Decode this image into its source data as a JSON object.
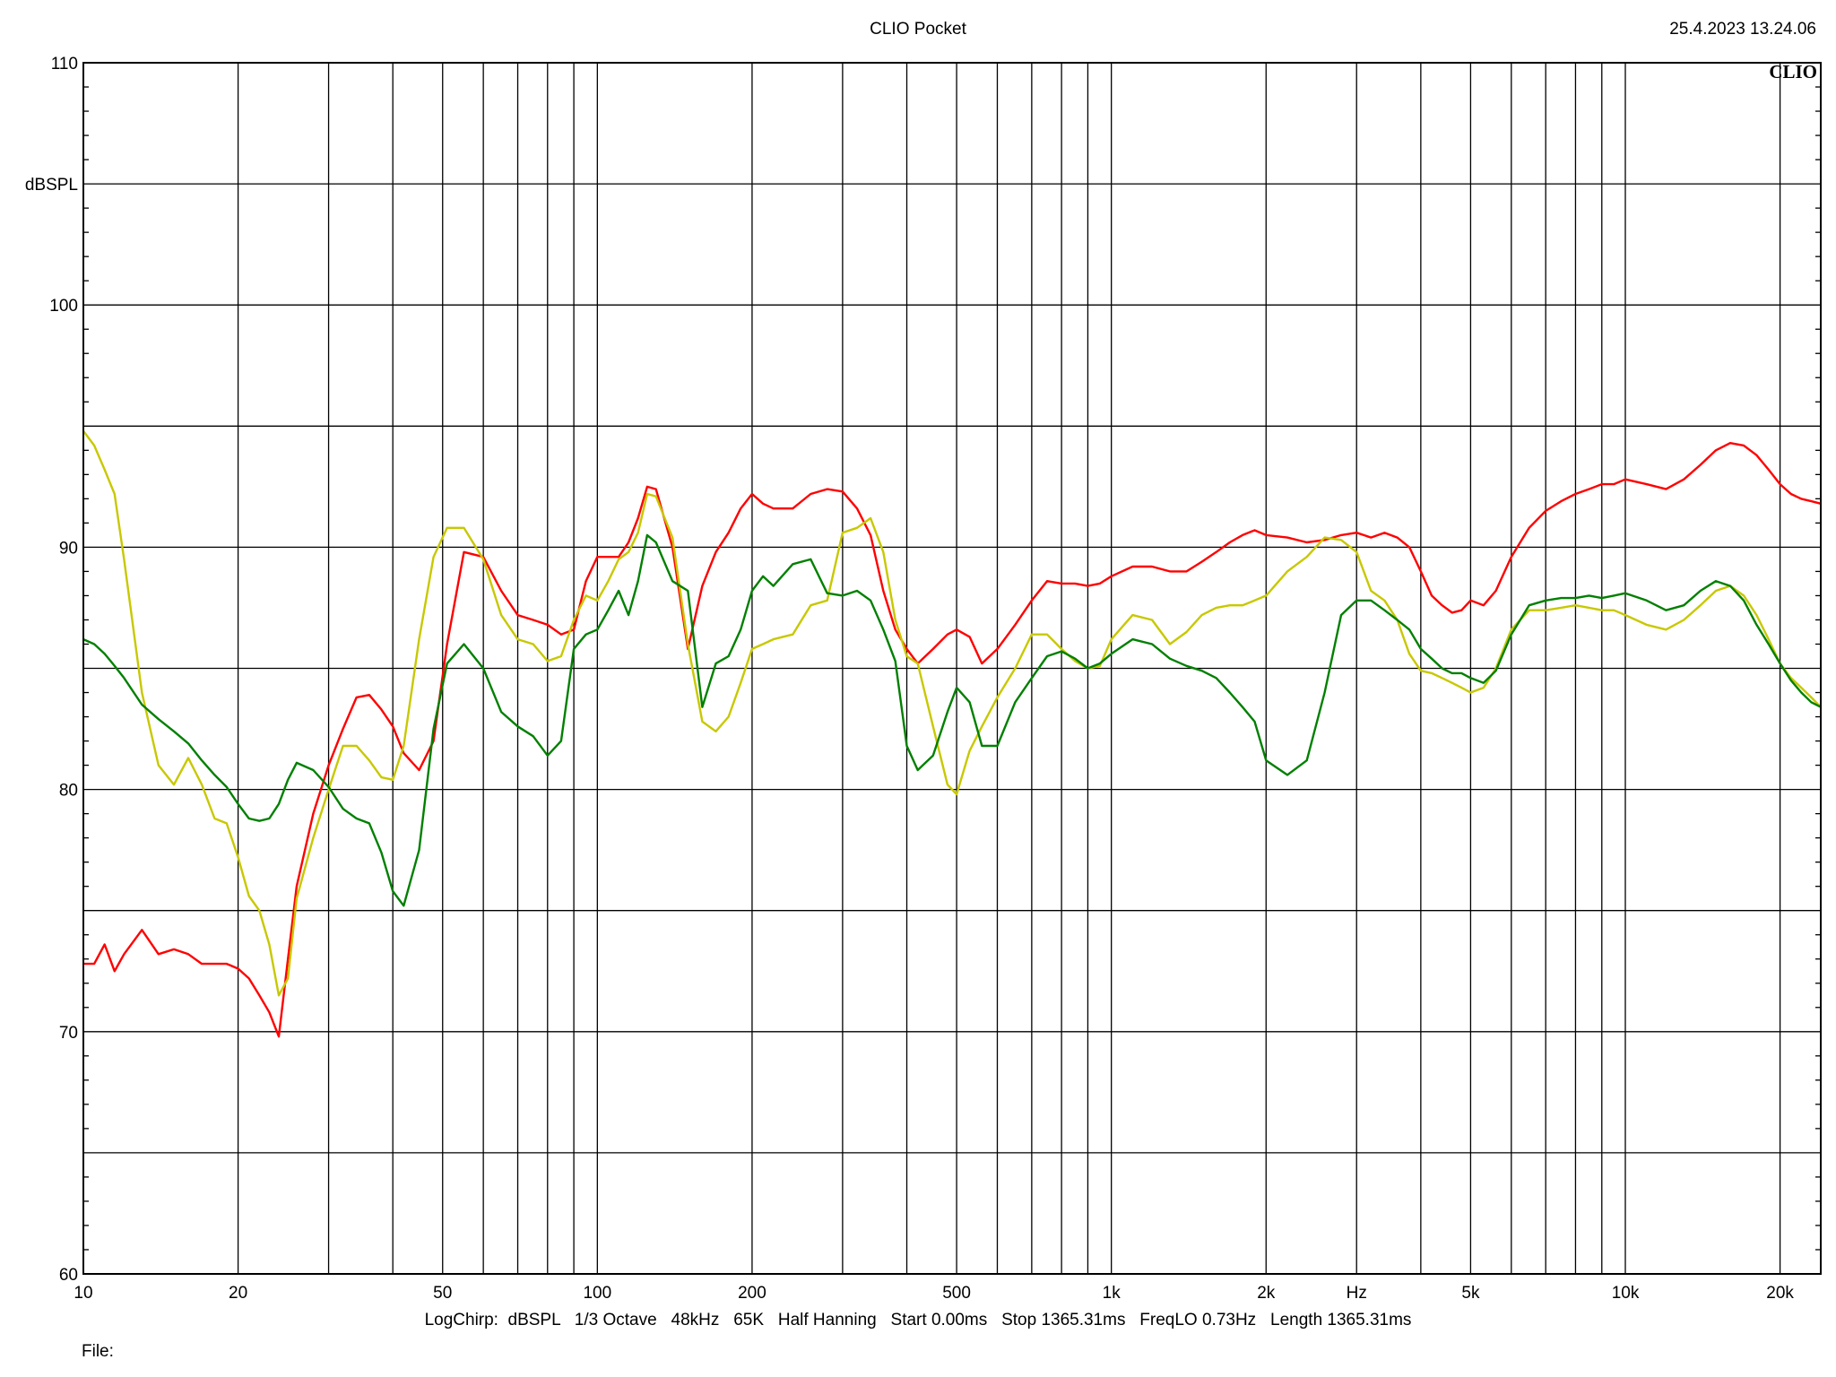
{
  "header": {
    "title": "CLIO Pocket",
    "timestamp": "25.4.2023 13.24.06",
    "logo": "CLIO"
  },
  "footer": {
    "settings": "LogChirp:  dBSPL   1/3 Octave   48kHz   65K   Half Hanning   Start 0.00ms   Stop 1365.31ms   FreqLO 0.73Hz   Length 1365.31ms",
    "file_label": "File:"
  },
  "chart_data": {
    "type": "line",
    "title": "",
    "xlabel": "Hz",
    "ylabel": "dBSPL",
    "x_scale": "log",
    "xlim": [
      10,
      24000
    ],
    "ylim": [
      60,
      110
    ],
    "grid": true,
    "x_tick_labels": [
      {
        "value": 10,
        "label": "10"
      },
      {
        "value": 20,
        "label": "20"
      },
      {
        "value": 50,
        "label": "50"
      },
      {
        "value": 100,
        "label": "100"
      },
      {
        "value": 200,
        "label": "200"
      },
      {
        "value": 500,
        "label": "500"
      },
      {
        "value": 1000,
        "label": "1k"
      },
      {
        "value": 2000,
        "label": "2k"
      },
      {
        "value": 5000,
        "label": "5k"
      },
      {
        "value": 10000,
        "label": "10k"
      },
      {
        "value": 20000,
        "label": "20k"
      }
    ],
    "y_tick_labels": [
      {
        "value": 60,
        "label": "60"
      },
      {
        "value": 70,
        "label": "70"
      },
      {
        "value": 80,
        "label": "80"
      },
      {
        "value": 90,
        "label": "90"
      },
      {
        "value": 100,
        "label": "100"
      },
      {
        "value": 110,
        "label": "110"
      }
    ],
    "series": [
      {
        "color": "#ff0000",
        "x": [
          10,
          10.5,
          11,
          11.5,
          12,
          13,
          14,
          15,
          16,
          17,
          18,
          19,
          20,
          21,
          22,
          23,
          24,
          25,
          26,
          28,
          30,
          32,
          34,
          36,
          38,
          40,
          42,
          45,
          48,
          51,
          55,
          60,
          65,
          70,
          75,
          80,
          85,
          90,
          95,
          100,
          105,
          110,
          115,
          120,
          125,
          130,
          140,
          150,
          160,
          170,
          180,
          190,
          200,
          210,
          220,
          240,
          260,
          280,
          300,
          320,
          340,
          360,
          380,
          400,
          420,
          450,
          480,
          500,
          530,
          560,
          600,
          650,
          700,
          750,
          800,
          850,
          900,
          950,
          1000,
          1100,
          1200,
          1300,
          1400,
          1500,
          1600,
          1700,
          1800,
          1900,
          2000,
          2200,
          2400,
          2600,
          2800,
          3000,
          3200,
          3400,
          3600,
          3800,
          4000,
          4200,
          4400,
          4600,
          4800,
          5000,
          5300,
          5600,
          6000,
          6500,
          7000,
          7500,
          8000,
          8500,
          9000,
          9500,
          10000,
          11000,
          12000,
          13000,
          14000,
          15000,
          16000,
          17000,
          18000,
          19000,
          20000,
          21000,
          22000,
          23000,
          24000
        ],
        "y": [
          72.8,
          72.8,
          73.6,
          72.5,
          73.2,
          74.2,
          73.2,
          73.4,
          73.2,
          72.8,
          72.8,
          72.8,
          72.6,
          72.2,
          71.5,
          70.8,
          69.8,
          73,
          76,
          79,
          81,
          82.5,
          83.8,
          83.9,
          83.3,
          82.6,
          81.5,
          80.8,
          82,
          86,
          89.8,
          89.6,
          88.2,
          87.2,
          87,
          86.8,
          86.4,
          86.6,
          88.6,
          89.6,
          89.6,
          89.6,
          90.2,
          91.2,
          92.5,
          92.4,
          90,
          85.8,
          88.4,
          89.8,
          90.6,
          91.6,
          92.2,
          91.8,
          91.6,
          91.6,
          92.2,
          92.4,
          92.3,
          91.6,
          90.5,
          88.2,
          86.6,
          85.8,
          85.2,
          85.8,
          86.4,
          86.6,
          86.3,
          85.2,
          85.8,
          86.8,
          87.8,
          88.6,
          88.5,
          88.5,
          88.4,
          88.5,
          88.8,
          89.2,
          89.2,
          89,
          89,
          89.4,
          89.8,
          90.2,
          90.5,
          90.7,
          90.5,
          90.4,
          90.2,
          90.3,
          90.5,
          90.6,
          90.4,
          90.6,
          90.4,
          90,
          89,
          88,
          87.6,
          87.3,
          87.4,
          87.8,
          87.6,
          88.2,
          89.6,
          90.8,
          91.5,
          91.9,
          92.2,
          92.4,
          92.6,
          92.6,
          92.8,
          92.6,
          92.4,
          92.8,
          93.4,
          94,
          94.3,
          94.2,
          93.8,
          93.2,
          92.6,
          92.2,
          92,
          91.9,
          91.8
        ]
      },
      {
        "color": "#c8c800",
        "x": [
          10,
          10.5,
          11,
          11.5,
          12,
          13,
          14,
          15,
          16,
          17,
          18,
          19,
          20,
          21,
          22,
          23,
          24,
          25,
          26,
          28,
          30,
          32,
          34,
          36,
          38,
          40,
          42,
          45,
          48,
          51,
          55,
          60,
          65,
          70,
          75,
          80,
          85,
          90,
          95,
          100,
          105,
          110,
          115,
          120,
          125,
          130,
          140,
          150,
          160,
          170,
          180,
          190,
          200,
          210,
          220,
          240,
          260,
          280,
          300,
          320,
          340,
          360,
          380,
          400,
          420,
          450,
          480,
          500,
          530,
          560,
          600,
          650,
          700,
          750,
          800,
          850,
          900,
          950,
          1000,
          1100,
          1200,
          1300,
          1400,
          1500,
          1600,
          1700,
          1800,
          1900,
          2000,
          2200,
          2400,
          2600,
          2800,
          3000,
          3200,
          3400,
          3600,
          3800,
          4000,
          4200,
          4400,
          4600,
          4800,
          5000,
          5300,
          5600,
          6000,
          6500,
          7000,
          7500,
          8000,
          8500,
          9000,
          9500,
          10000,
          11000,
          12000,
          13000,
          14000,
          15000,
          16000,
          17000,
          18000,
          19000,
          20000,
          21000,
          22000,
          23000,
          24000
        ],
        "y": [
          94.8,
          94.2,
          93.2,
          92.2,
          89.5,
          84,
          81,
          80.2,
          81.3,
          80.2,
          78.8,
          78.6,
          77.2,
          75.6,
          75,
          73.6,
          71.5,
          72.2,
          75.5,
          78,
          80,
          81.8,
          81.8,
          81.2,
          80.5,
          80.4,
          81.8,
          86.2,
          89.6,
          90.8,
          90.8,
          89.5,
          87.2,
          86.2,
          86,
          85.3,
          85.5,
          87,
          88,
          87.8,
          88.6,
          89.5,
          89.8,
          90.6,
          92.2,
          92.1,
          90.4,
          86,
          82.8,
          82.4,
          83,
          84.4,
          85.8,
          86,
          86.2,
          86.4,
          87.6,
          87.8,
          90.6,
          90.8,
          91.2,
          89.8,
          87,
          85.5,
          85.2,
          82.6,
          80.2,
          79.8,
          81.6,
          82.6,
          83.8,
          85,
          86.4,
          86.4,
          85.8,
          85.3,
          85,
          85.1,
          86.2,
          87.2,
          87,
          86,
          86.5,
          87.2,
          87.5,
          87.6,
          87.6,
          87.8,
          88,
          89,
          89.6,
          90.4,
          90.3,
          89.8,
          88.2,
          87.8,
          87,
          85.6,
          84.9,
          84.8,
          84.6,
          84.4,
          84.2,
          84,
          84.2,
          85,
          86.6,
          87.4,
          87.4,
          87.5,
          87.6,
          87.5,
          87.4,
          87.4,
          87.2,
          86.8,
          86.6,
          87,
          87.6,
          88.2,
          88.4,
          88,
          87.2,
          86.2,
          85.2,
          84.6,
          84.2,
          83.8,
          83.4
        ]
      },
      {
        "color": "#008000",
        "x": [
          10,
          10.5,
          11,
          11.5,
          12,
          13,
          14,
          15,
          16,
          17,
          18,
          19,
          20,
          21,
          22,
          23,
          24,
          25,
          26,
          28,
          30,
          32,
          34,
          36,
          38,
          40,
          42,
          45,
          48,
          51,
          55,
          60,
          65,
          70,
          75,
          80,
          85,
          90,
          95,
          100,
          105,
          110,
          115,
          120,
          125,
          130,
          140,
          150,
          160,
          170,
          180,
          190,
          200,
          210,
          220,
          240,
          260,
          280,
          300,
          320,
          340,
          360,
          380,
          400,
          420,
          450,
          480,
          500,
          530,
          560,
          600,
          650,
          700,
          750,
          800,
          850,
          900,
          950,
          1000,
          1100,
          1200,
          1300,
          1400,
          1500,
          1600,
          1700,
          1800,
          1900,
          2000,
          2200,
          2400,
          2600,
          2800,
          3000,
          3200,
          3400,
          3600,
          3800,
          4000,
          4200,
          4400,
          4600,
          4800,
          5000,
          5300,
          5600,
          6000,
          6500,
          7000,
          7500,
          8000,
          8500,
          9000,
          9500,
          10000,
          11000,
          12000,
          13000,
          14000,
          15000,
          16000,
          17000,
          18000,
          19000,
          20000,
          21000,
          22000,
          23000,
          24000
        ],
        "y": [
          86.2,
          86,
          85.6,
          85.1,
          84.6,
          83.5,
          82.9,
          82.4,
          81.9,
          81.2,
          80.6,
          80.1,
          79.4,
          78.8,
          78.7,
          78.8,
          79.4,
          80.4,
          81.1,
          80.8,
          80.1,
          79.2,
          78.8,
          78.6,
          77.4,
          75.8,
          75.2,
          77.5,
          82.5,
          85.2,
          86,
          85,
          83.2,
          82.6,
          82.2,
          81.4,
          82,
          85.8,
          86.4,
          86.6,
          87.4,
          88.2,
          87.2,
          88.6,
          90.5,
          90.2,
          88.6,
          88.2,
          83.4,
          85.2,
          85.5,
          86.6,
          88.2,
          88.8,
          88.4,
          89.3,
          89.5,
          88.1,
          88,
          88.2,
          87.8,
          86.6,
          85.3,
          81.8,
          80.8,
          81.4,
          83.2,
          84.2,
          83.6,
          81.8,
          81.8,
          83.6,
          84.6,
          85.5,
          85.7,
          85.4,
          85,
          85.2,
          85.6,
          86.2,
          86,
          85.4,
          85.1,
          84.9,
          84.6,
          84,
          83.4,
          82.8,
          81.2,
          80.6,
          81.2,
          84,
          87.2,
          87.8,
          87.8,
          87.4,
          87,
          86.6,
          85.8,
          85.4,
          85,
          84.8,
          84.8,
          84.6,
          84.4,
          84.9,
          86.4,
          87.6,
          87.8,
          87.9,
          87.9,
          88,
          87.9,
          88,
          88.1,
          87.8,
          87.4,
          87.6,
          88.2,
          88.6,
          88.4,
          87.8,
          86.8,
          86,
          85.2,
          84.5,
          84,
          83.6,
          83.4
        ]
      }
    ]
  }
}
